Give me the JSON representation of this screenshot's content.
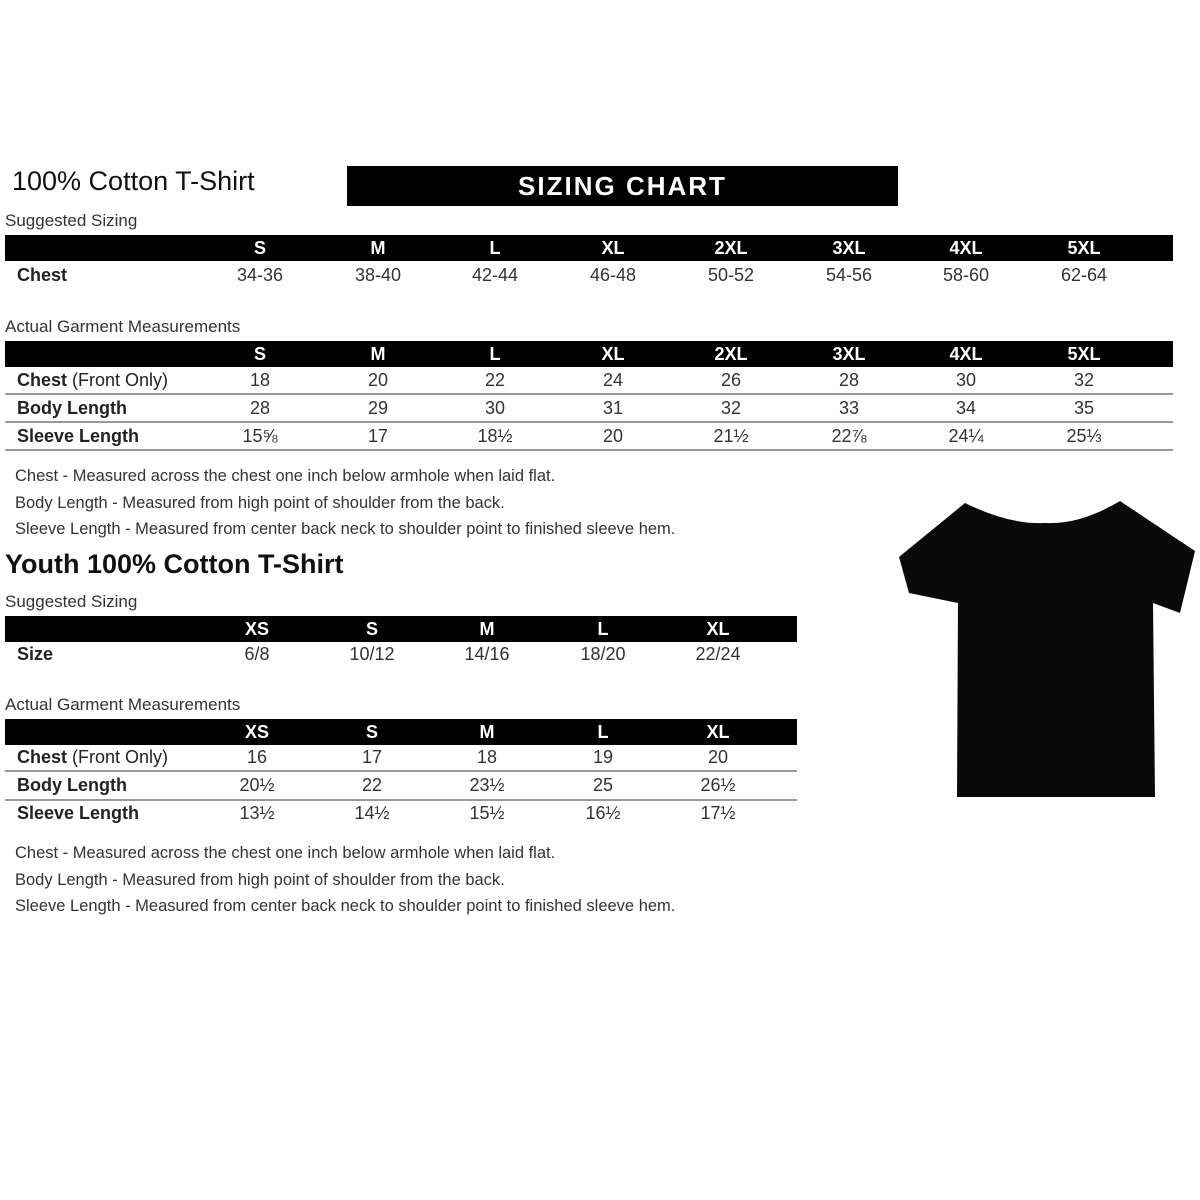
{
  "adult": {
    "title": "100% Cotton T-Shirt",
    "banner": "SIZING CHART",
    "suggested_label": "Suggested Sizing",
    "sizes": [
      "S",
      "M",
      "L",
      "XL",
      "2XL",
      "3XL",
      "4XL",
      "5XL"
    ],
    "suggested_rows": [
      {
        "label": "Chest",
        "values": [
          "34-36",
          "38-40",
          "42-44",
          "46-48",
          "50-52",
          "54-56",
          "58-60",
          "62-64"
        ]
      }
    ],
    "actual_label": "Actual Garment Measurements",
    "actual_rows": [
      {
        "label": "Chest",
        "label_suffix": " (Front Only)",
        "values": [
          "18",
          "20",
          "22",
          "24",
          "26",
          "28",
          "30",
          "32"
        ]
      },
      {
        "label": "Body Length",
        "label_suffix": "",
        "values": [
          "28",
          "29",
          "30",
          "31",
          "32",
          "33",
          "34",
          "35"
        ]
      },
      {
        "label": "Sleeve Length",
        "label_suffix": "",
        "values": [
          "15⅝",
          "17",
          "18½",
          "20",
          "21½",
          "22⅞",
          "24¼",
          "25⅓"
        ]
      }
    ],
    "notes": [
      "Chest - Measured across the chest one inch below armhole when laid flat.",
      "Body Length - Measured from high point of shoulder from the back.",
      "Sleeve Length - Measured from center back neck to shoulder point to finished sleeve hem."
    ]
  },
  "youth": {
    "title": "Youth 100% Cotton T-Shirt",
    "suggested_label": "Suggested Sizing",
    "sizes": [
      "XS",
      "S",
      "M",
      "L",
      "XL"
    ],
    "suggested_rows": [
      {
        "label": "Size",
        "values": [
          "6/8",
          "10/12",
          "14/16",
          "18/20",
          "22/24"
        ]
      }
    ],
    "actual_label": "Actual Garment Measurements",
    "actual_rows": [
      {
        "label": "Chest",
        "label_suffix": " (Front Only)",
        "values": [
          "16",
          "17",
          "18",
          "19",
          "20"
        ]
      },
      {
        "label": "Body Length",
        "label_suffix": "",
        "values": [
          "20½",
          "22",
          "23½",
          "25",
          "26½"
        ]
      },
      {
        "label": "Sleeve Length",
        "label_suffix": "",
        "values": [
          "13½",
          "14½",
          "15½",
          "16½",
          "17½"
        ]
      }
    ],
    "notes": [
      "Chest - Measured across the chest one inch below armhole when laid flat.",
      "Body Length - Measured from high point of shoulder from the back.",
      "Sleeve Length - Measured from center back neck to shoulder point to finished sleeve hem."
    ]
  },
  "tshirt_color": "#0a0a0a"
}
